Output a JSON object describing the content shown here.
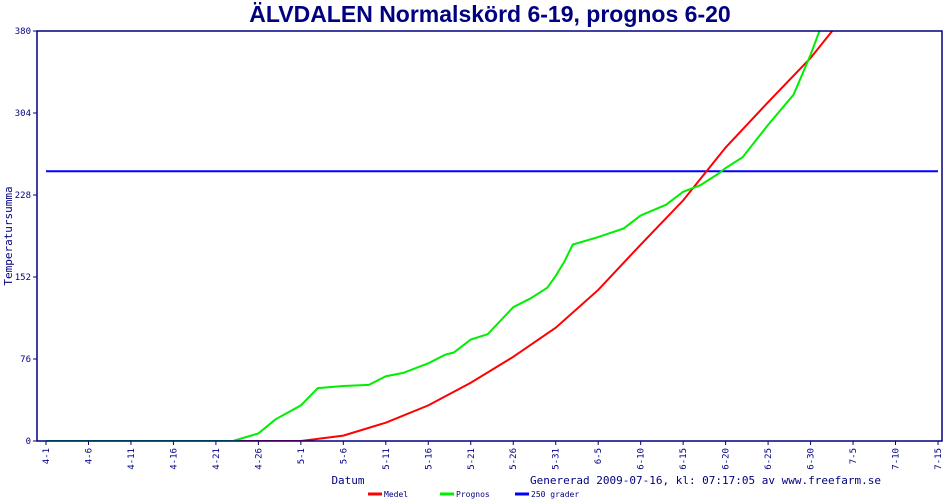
{
  "chart_data": {
    "type": "line",
    "title": "ÄLVDALEN Normalskörd 6-19, prognos 6-20",
    "xlabel": "Datum",
    "ylabel": "Temperatursumma",
    "footer": "Genererad 2009-07-16, kl: 07:17:05 av www.freefarm.se",
    "ylim": [
      0,
      380
    ],
    "yticks": [
      0,
      76,
      152,
      228,
      304,
      380
    ],
    "xlim": [
      "4-1",
      "7-15"
    ],
    "xticks": [
      "4-1",
      "4-6",
      "4-11",
      "4-16",
      "4-21",
      "4-26",
      "5-1",
      "5-6",
      "5-11",
      "5-16",
      "5-21",
      "5-26",
      "5-31",
      "6-5",
      "6-10",
      "6-15",
      "6-20",
      "6-25",
      "6-30",
      "7-5",
      "7-10",
      "7-15"
    ],
    "grid": false,
    "legend": "bottom",
    "series": [
      {
        "name": "Medel",
        "color": "#ff0000",
        "points": [
          [
            "4-1",
            0
          ],
          [
            "4-23",
            0
          ],
          [
            "5-1",
            0
          ],
          [
            "5-6",
            5
          ],
          [
            "5-11",
            17
          ],
          [
            "5-16",
            33
          ],
          [
            "5-21",
            54
          ],
          [
            "5-26",
            78
          ],
          [
            "5-31",
            105
          ],
          [
            "6-5",
            140
          ],
          [
            "6-10",
            182
          ],
          [
            "6-15",
            223
          ],
          [
            "6-20",
            272
          ],
          [
            "6-25",
            314
          ],
          [
            "6-30",
            355
          ],
          [
            "7-5",
            404
          ]
        ]
      },
      {
        "name": "Prognos",
        "color": "#00ee00",
        "points": [
          [
            "4-1",
            0
          ],
          [
            "4-23",
            0
          ],
          [
            "4-26",
            7
          ],
          [
            "4-28",
            20
          ],
          [
            "5-1",
            33
          ],
          [
            "5-3",
            49
          ],
          [
            "5-6",
            51
          ],
          [
            "5-9",
            52
          ],
          [
            "5-11",
            60
          ],
          [
            "5-13",
            63
          ],
          [
            "5-16",
            72
          ],
          [
            "5-18",
            80
          ],
          [
            "5-19",
            82
          ],
          [
            "5-21",
            94
          ],
          [
            "5-23",
            99
          ],
          [
            "5-26",
            124
          ],
          [
            "5-28",
            132
          ],
          [
            "5-30",
            142
          ],
          [
            "5-31",
            153
          ],
          [
            "6-1",
            166
          ],
          [
            "6-2",
            182
          ],
          [
            "6-5",
            189
          ],
          [
            "6-8",
            197
          ],
          [
            "6-10",
            209
          ],
          [
            "6-13",
            219
          ],
          [
            "6-15",
            231
          ],
          [
            "6-17",
            237
          ],
          [
            "6-19",
            247
          ],
          [
            "6-20",
            253
          ],
          [
            "6-22",
            263
          ],
          [
            "6-25",
            293
          ],
          [
            "6-28",
            321
          ],
          [
            "6-30",
            358
          ],
          [
            "7-2",
            400
          ]
        ]
      },
      {
        "name": "250 grader",
        "color": "#0000ff",
        "points": [
          [
            "4-1",
            250
          ],
          [
            "7-15",
            250
          ]
        ]
      }
    ]
  }
}
